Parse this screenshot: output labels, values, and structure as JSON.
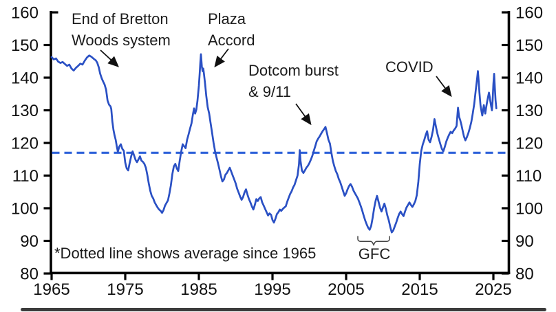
{
  "chart_data": {
    "type": "line",
    "title": "",
    "xlabel": "",
    "ylabel": "",
    "x_ticks": [
      1965,
      1975,
      1985,
      1995,
      2005,
      2015,
      2025
    ],
    "y_ticks": [
      80,
      90,
      100,
      110,
      120,
      130,
      140,
      150,
      160
    ],
    "ylim": [
      80,
      160
    ],
    "xlim": [
      1965,
      2027
    ],
    "grid": false,
    "legend": "none",
    "average_line": {
      "value": 117,
      "style": "dashed"
    },
    "footnote": "*Dotted line shows average since 1965",
    "series": [
      {
        "x": [
          1965.0,
          1965.3,
          1965.6,
          1965.9,
          1966.2,
          1966.5,
          1966.8,
          1967.1,
          1967.4,
          1967.7,
          1968.0,
          1968.3,
          1968.6,
          1968.9,
          1969.2,
          1969.5,
          1969.8,
          1970.1,
          1970.4,
          1970.7,
          1971.0,
          1971.2,
          1971.4,
          1971.6,
          1971.8,
          1972.0,
          1972.2,
          1972.4,
          1972.6,
          1972.8,
          1973.0,
          1973.1,
          1973.25,
          1973.4,
          1973.55,
          1973.7,
          1973.85,
          1974.0,
          1974.2,
          1974.4,
          1974.6,
          1974.8,
          1975.0,
          1975.2,
          1975.4,
          1975.6,
          1975.8,
          1976.0,
          1976.2,
          1976.4,
          1976.6,
          1976.8,
          1977.0,
          1977.2,
          1977.4,
          1977.6,
          1977.8,
          1978.0,
          1978.2,
          1978.4,
          1978.6,
          1978.8,
          1979.0,
          1979.2,
          1979.4,
          1979.6,
          1979.8,
          1980.0,
          1980.2,
          1980.4,
          1980.6,
          1980.8,
          1981.0,
          1981.2,
          1981.4,
          1981.6,
          1981.8,
          1982.0,
          1982.2,
          1982.4,
          1982.6,
          1982.8,
          1983.0,
          1983.2,
          1983.4,
          1983.6,
          1983.8,
          1984.0,
          1984.2,
          1984.35,
          1984.5,
          1984.65,
          1984.8,
          1985.0,
          1985.1,
          1985.2,
          1985.28,
          1985.4,
          1985.5,
          1985.6,
          1985.7,
          1985.85,
          1986.0,
          1986.2,
          1986.4,
          1986.6,
          1986.8,
          1987.0,
          1987.2,
          1987.4,
          1987.6,
          1987.8,
          1988.0,
          1988.2,
          1988.4,
          1988.6,
          1988.8,
          1989.0,
          1989.2,
          1989.4,
          1989.6,
          1989.8,
          1990.0,
          1990.2,
          1990.4,
          1990.6,
          1990.8,
          1991.0,
          1991.2,
          1991.4,
          1991.6,
          1991.8,
          1992.0,
          1992.2,
          1992.4,
          1992.6,
          1992.8,
          1993.0,
          1993.2,
          1993.4,
          1993.6,
          1993.8,
          1994.0,
          1994.2,
          1994.4,
          1994.6,
          1994.8,
          1995.0,
          1995.2,
          1995.4,
          1995.6,
          1995.8,
          1996.0,
          1996.2,
          1996.4,
          1996.6,
          1996.8,
          1997.0,
          1997.2,
          1997.4,
          1997.6,
          1997.8,
          1998.0,
          1998.2,
          1998.4,
          1998.6,
          1998.7,
          1998.8,
          1999.0,
          1999.2,
          1999.4,
          1999.6,
          1999.8,
          2000.0,
          2000.2,
          2000.4,
          2000.6,
          2000.8,
          2001.0,
          2001.2,
          2001.4,
          2001.6,
          2001.8,
          2002.0,
          2002.2,
          2002.4,
          2002.6,
          2002.8,
          2003.0,
          2003.2,
          2003.4,
          2003.6,
          2003.8,
          2004.0,
          2004.2,
          2004.4,
          2004.6,
          2004.8,
          2005.0,
          2005.2,
          2005.4,
          2005.6,
          2005.8,
          2006.0,
          2006.2,
          2006.4,
          2006.6,
          2006.8,
          2007.0,
          2007.2,
          2007.4,
          2007.6,
          2007.8,
          2008.0,
          2008.2,
          2008.4,
          2008.6,
          2008.8,
          2009.0,
          2009.2,
          2009.4,
          2009.6,
          2009.8,
          2010.0,
          2010.2,
          2010.4,
          2010.6,
          2010.8,
          2011.0,
          2011.2,
          2011.4,
          2011.6,
          2011.8,
          2012.0,
          2012.2,
          2012.4,
          2012.6,
          2012.8,
          2013.0,
          2013.2,
          2013.4,
          2013.6,
          2013.8,
          2014.0,
          2014.2,
          2014.4,
          2014.6,
          2014.8,
          2015.0,
          2015.2,
          2015.4,
          2015.6,
          2015.8,
          2016.0,
          2016.2,
          2016.4,
          2016.6,
          2016.8,
          2017.0,
          2017.2,
          2017.4,
          2017.6,
          2017.8,
          2018.0,
          2018.2,
          2018.4,
          2018.6,
          2018.8,
          2019.0,
          2019.2,
          2019.4,
          2019.6,
          2019.8,
          2020.0,
          2020.2,
          2020.35,
          2020.5,
          2020.65,
          2020.8,
          2021.0,
          2021.2,
          2021.4,
          2021.6,
          2021.8,
          2022.0,
          2022.2,
          2022.4,
          2022.6,
          2022.8,
          2022.9,
          2023.0,
          2023.1,
          2023.25,
          2023.4,
          2023.5,
          2023.6,
          2023.7,
          2023.8,
          2023.9,
          2024.0,
          2024.1,
          2024.25,
          2024.4,
          2024.5,
          2024.6,
          2024.7,
          2024.8,
          2024.9,
          2025.0,
          2025.1,
          2025.2,
          2025.3,
          2025.4
        ],
        "values": [
          146.3,
          145.6,
          145.9,
          144.9,
          144.5,
          144.8,
          144.2,
          143.6,
          144.0,
          142.8,
          142.2,
          143.0,
          143.6,
          144.3,
          144.0,
          145.2,
          146.2,
          146.8,
          146.4,
          145.8,
          145.3,
          144.6,
          143.2,
          141.2,
          139.8,
          138.8,
          137.9,
          136.3,
          133.0,
          131.7,
          131.2,
          130.4,
          126.5,
          124.0,
          122.3,
          121.0,
          119.0,
          117.3,
          118.9,
          119.6,
          118.2,
          117.6,
          114.0,
          112.2,
          111.6,
          113.8,
          115.9,
          117.4,
          116.2,
          114.8,
          114.1,
          115.0,
          115.9,
          114.6,
          114.2,
          113.6,
          112.4,
          110.2,
          107.6,
          105.3,
          103.8,
          103.0,
          101.8,
          101.0,
          100.2,
          99.6,
          99.2,
          98.6,
          99.4,
          100.8,
          101.6,
          102.4,
          104.5,
          107.0,
          110.5,
          112.8,
          113.6,
          112.2,
          111.4,
          114.6,
          117.3,
          119.6,
          119.0,
          118.4,
          121.0,
          122.6,
          124.4,
          126.0,
          128.8,
          130.6,
          129.0,
          130.2,
          132.8,
          137.5,
          141.0,
          144.5,
          147.2,
          143.5,
          142.0,
          142.8,
          141.0,
          138.0,
          134.5,
          131.0,
          129.0,
          126.0,
          123.0,
          120.0,
          117.5,
          115.5,
          113.8,
          111.8,
          109.8,
          108.2,
          108.8,
          110.2,
          110.8,
          111.6,
          112.4,
          111.2,
          110.0,
          108.8,
          107.6,
          106.0,
          104.8,
          103.6,
          102.6,
          103.4,
          104.8,
          105.8,
          104.2,
          102.8,
          101.8,
          100.6,
          99.6,
          101.0,
          102.8,
          102.2,
          103.0,
          103.4,
          101.8,
          100.8,
          99.8,
          98.8,
          97.8,
          98.4,
          98.0,
          96.4,
          95.6,
          96.8,
          98.2,
          98.8,
          99.6,
          99.2,
          99.8,
          100.2,
          100.6,
          102.0,
          103.2,
          104.4,
          105.2,
          106.4,
          107.2,
          108.6,
          110.0,
          113.5,
          117.8,
          114.5,
          111.5,
          110.8,
          111.6,
          112.4,
          113.0,
          113.8,
          114.8,
          116.0,
          117.5,
          119.0,
          120.5,
          121.3,
          122.0,
          122.8,
          123.6,
          124.2,
          124.9,
          123.0,
          121.0,
          119.8,
          117.0,
          114.5,
          112.8,
          111.4,
          110.4,
          109.0,
          108.0,
          106.6,
          105.2,
          103.8,
          104.6,
          105.8,
          106.8,
          107.4,
          106.6,
          105.4,
          104.6,
          103.8,
          103.0,
          101.8,
          100.6,
          99.2,
          97.6,
          96.2,
          95.0,
          94.0,
          93.4,
          94.6,
          97.0,
          100.0,
          102.2,
          103.8,
          102.0,
          100.2,
          99.0,
          100.2,
          101.4,
          99.8,
          97.8,
          96.2,
          94.2,
          92.6,
          93.2,
          94.4,
          95.6,
          97.0,
          98.2,
          99.0,
          98.2,
          97.6,
          99.0,
          100.2,
          101.0,
          101.8,
          101.0,
          100.4,
          101.2,
          102.2,
          104.0,
          108.0,
          113.5,
          117.5,
          119.5,
          120.8,
          122.4,
          123.6,
          121.0,
          120.2,
          121.8,
          124.0,
          127.3,
          125.0,
          122.8,
          121.2,
          119.6,
          118.2,
          117.4,
          118.8,
          120.4,
          121.6,
          122.6,
          123.4,
          123.0,
          123.8,
          124.4,
          125.2,
          130.8,
          128.0,
          127.0,
          125.6,
          124.0,
          122.0,
          120.8,
          121.8,
          123.0,
          124.6,
          126.4,
          129.0,
          132.0,
          136.0,
          140.0,
          142.0,
          139.0,
          135.5,
          131.5,
          129.5,
          128.4,
          130.0,
          131.6,
          130.2,
          129.0,
          130.6,
          132.0,
          133.8,
          135.4,
          134.2,
          132.6,
          131.2,
          130.0,
          133.0,
          138.0,
          141.2,
          137.0,
          133.0,
          130.6
        ]
      }
    ]
  },
  "annotations": {
    "bretton": {
      "text": "End of Bretton\nWoods system"
    },
    "plaza": {
      "text": "Plaza\nAccord"
    },
    "dotcom": {
      "text": "Dotcom burst\n& 9/11"
    },
    "covid": {
      "text": "COVID"
    },
    "gfc": {
      "text": "GFC"
    }
  },
  "colors": {
    "line": "#2A50C4",
    "dashed_line": "#2E62D9",
    "axis": "#000000",
    "text": "#1B1B1B",
    "footer_bar": "#3C3C3C"
  }
}
